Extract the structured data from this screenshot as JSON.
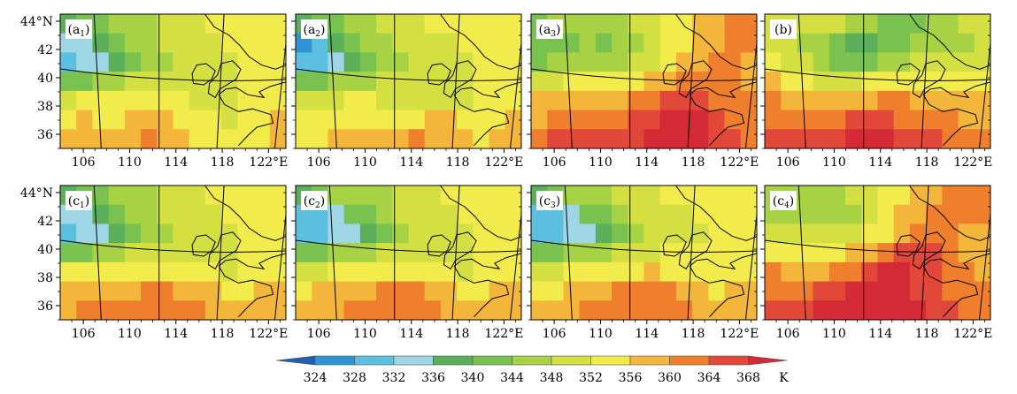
{
  "panels": [
    {
      "id": "a1",
      "letter": "a",
      "sub": "1",
      "row": 0,
      "col": 0,
      "field": [
        [
          338,
          340,
          342,
          344,
          344,
          346,
          348,
          350,
          350,
          352,
          352,
          354,
          352,
          352
        ],
        [
          332,
          334,
          338,
          342,
          344,
          346,
          348,
          350,
          350,
          350,
          352,
          352,
          352,
          354
        ],
        [
          330,
          332,
          334,
          338,
          342,
          344,
          346,
          348,
          348,
          350,
          350,
          352,
          352,
          354
        ],
        [
          340,
          342,
          344,
          346,
          348,
          348,
          350,
          350,
          350,
          350,
          350,
          352,
          352,
          354
        ],
        [
          350,
          352,
          352,
          354,
          354,
          352,
          352,
          352,
          350,
          350,
          350,
          352,
          352,
          354
        ],
        [
          354,
          356,
          354,
          354,
          356,
          356,
          356,
          354,
          352,
          352,
          350,
          352,
          354,
          356
        ],
        [
          356,
          356,
          356,
          358,
          358,
          360,
          358,
          356,
          354,
          352,
          352,
          354,
          354,
          356
        ]
      ]
    },
    {
      "id": "a2",
      "letter": "a",
      "sub": "2",
      "row": 0,
      "col": 1,
      "field": [
        [
          336,
          340,
          342,
          344,
          346,
          348,
          350,
          350,
          352,
          352,
          354,
          354,
          354,
          354
        ],
        [
          326,
          330,
          336,
          342,
          344,
          346,
          348,
          350,
          350,
          350,
          352,
          352,
          354,
          354
        ],
        [
          328,
          330,
          332,
          336,
          340,
          344,
          346,
          348,
          348,
          350,
          350,
          352,
          352,
          354
        ],
        [
          340,
          342,
          344,
          346,
          346,
          348,
          348,
          350,
          350,
          350,
          350,
          352,
          352,
          354
        ],
        [
          348,
          350,
          350,
          352,
          352,
          350,
          350,
          350,
          350,
          350,
          350,
          352,
          352,
          354
        ],
        [
          352,
          354,
          354,
          354,
          354,
          354,
          354,
          354,
          356,
          356,
          354,
          354,
          354,
          356
        ],
        [
          354,
          354,
          356,
          356,
          356,
          358,
          358,
          360,
          358,
          358,
          356,
          354,
          356,
          356
        ]
      ]
    },
    {
      "id": "a3",
      "letter": "a",
      "sub": "3",
      "row": 0,
      "col": 2,
      "field": [
        [
          342,
          344,
          344,
          346,
          344,
          346,
          348,
          350,
          352,
          354,
          356,
          358,
          360,
          360
        ],
        [
          340,
          342,
          342,
          344,
          342,
          344,
          346,
          350,
          352,
          354,
          356,
          358,
          360,
          360
        ],
        [
          342,
          344,
          344,
          344,
          344,
          346,
          348,
          350,
          354,
          356,
          358,
          360,
          360,
          358
        ],
        [
          350,
          350,
          352,
          352,
          352,
          352,
          354,
          356,
          358,
          360,
          362,
          362,
          360,
          358
        ],
        [
          356,
          356,
          358,
          358,
          358,
          358,
          360,
          362,
          364,
          366,
          364,
          362,
          360,
          360
        ],
        [
          358,
          360,
          362,
          362,
          362,
          362,
          364,
          366,
          368,
          370,
          368,
          364,
          362,
          360
        ],
        [
          362,
          364,
          364,
          366,
          364,
          366,
          366,
          368,
          370,
          370,
          370,
          366,
          364,
          362
        ]
      ]
    },
    {
      "id": "b",
      "letter": "b",
      "sub": "",
      "row": 0,
      "col": 3,
      "field": [
        [
          350,
          350,
          350,
          350,
          348,
          346,
          344,
          342,
          340,
          342,
          344,
          346,
          348,
          348
        ],
        [
          350,
          348,
          346,
          344,
          340,
          338,
          338,
          340,
          342,
          344,
          346,
          346,
          346,
          348
        ],
        [
          352,
          350,
          348,
          346,
          342,
          340,
          342,
          344,
          346,
          348,
          348,
          348,
          348,
          350
        ],
        [
          356,
          354,
          352,
          350,
          350,
          350,
          352,
          352,
          354,
          354,
          354,
          352,
          352,
          352
        ],
        [
          360,
          358,
          356,
          356,
          356,
          358,
          358,
          360,
          360,
          358,
          358,
          356,
          356,
          356
        ],
        [
          362,
          360,
          360,
          362,
          362,
          364,
          364,
          364,
          362,
          362,
          360,
          360,
          358,
          358
        ],
        [
          364,
          364,
          364,
          366,
          366,
          368,
          368,
          368,
          366,
          364,
          364,
          362,
          360,
          360
        ]
      ]
    },
    {
      "id": "c1",
      "letter": "c",
      "sub": "1",
      "row": 1,
      "col": 0,
      "field": [
        [
          338,
          340,
          342,
          344,
          344,
          346,
          348,
          350,
          350,
          352,
          352,
          354,
          352,
          352
        ],
        [
          332,
          334,
          338,
          342,
          344,
          346,
          348,
          350,
          350,
          350,
          352,
          352,
          352,
          354
        ],
        [
          330,
          332,
          334,
          338,
          342,
          344,
          346,
          348,
          348,
          350,
          350,
          352,
          352,
          354
        ],
        [
          340,
          342,
          344,
          346,
          348,
          348,
          350,
          350,
          350,
          350,
          350,
          352,
          352,
          354
        ],
        [
          352,
          352,
          354,
          354,
          354,
          354,
          354,
          354,
          352,
          352,
          350,
          352,
          354,
          354
        ],
        [
          356,
          356,
          356,
          358,
          358,
          360,
          360,
          358,
          356,
          356,
          354,
          354,
          356,
          356
        ],
        [
          358,
          360,
          360,
          360,
          362,
          362,
          362,
          360,
          360,
          358,
          356,
          356,
          356,
          356
        ]
      ]
    },
    {
      "id": "c2",
      "letter": "c",
      "sub": "2",
      "row": 1,
      "col": 1,
      "field": [
        [
          338,
          342,
          344,
          344,
          344,
          346,
          348,
          350,
          350,
          352,
          352,
          354,
          354,
          354
        ],
        [
          328,
          330,
          334,
          340,
          342,
          346,
          348,
          350,
          350,
          350,
          352,
          352,
          354,
          354
        ],
        [
          328,
          330,
          332,
          334,
          338,
          342,
          346,
          348,
          348,
          350,
          350,
          352,
          352,
          354
        ],
        [
          340,
          342,
          344,
          344,
          346,
          348,
          348,
          350,
          350,
          350,
          350,
          352,
          352,
          354
        ],
        [
          350,
          350,
          352,
          352,
          352,
          354,
          354,
          354,
          352,
          352,
          350,
          352,
          352,
          354
        ],
        [
          354,
          356,
          356,
          356,
          358,
          360,
          360,
          360,
          358,
          356,
          354,
          354,
          356,
          356
        ],
        [
          356,
          358,
          358,
          360,
          360,
          362,
          362,
          362,
          360,
          358,
          356,
          356,
          356,
          356
        ]
      ]
    },
    {
      "id": "c3",
      "letter": "c",
      "sub": "3",
      "row": 1,
      "col": 2,
      "field": [
        [
          338,
          342,
          344,
          346,
          346,
          348,
          348,
          350,
          352,
          352,
          354,
          354,
          354,
          354
        ],
        [
          328,
          330,
          334,
          340,
          342,
          346,
          348,
          350,
          350,
          350,
          352,
          352,
          354,
          354
        ],
        [
          328,
          330,
          332,
          334,
          338,
          342,
          346,
          348,
          348,
          350,
          350,
          352,
          352,
          354
        ],
        [
          340,
          342,
          344,
          344,
          346,
          348,
          348,
          350,
          352,
          352,
          352,
          352,
          352,
          354
        ],
        [
          350,
          350,
          352,
          352,
          354,
          354,
          354,
          356,
          354,
          354,
          352,
          352,
          354,
          354
        ],
        [
          354,
          354,
          356,
          356,
          358,
          360,
          360,
          360,
          360,
          358,
          356,
          354,
          356,
          356
        ],
        [
          356,
          358,
          358,
          360,
          362,
          362,
          362,
          362,
          362,
          360,
          356,
          356,
          356,
          356
        ]
      ]
    },
    {
      "id": "c4",
      "letter": "c",
      "sub": "4",
      "row": 1,
      "col": 3,
      "field": [
        [
          344,
          344,
          344,
          346,
          346,
          348,
          348,
          352,
          354,
          356,
          358,
          360,
          362,
          362
        ],
        [
          344,
          346,
          346,
          344,
          344,
          346,
          348,
          352,
          356,
          358,
          360,
          360,
          362,
          362
        ],
        [
          348,
          348,
          348,
          348,
          348,
          350,
          352,
          354,
          358,
          362,
          362,
          360,
          358,
          356
        ],
        [
          354,
          354,
          354,
          354,
          354,
          356,
          358,
          362,
          366,
          366,
          364,
          360,
          358,
          356
        ],
        [
          360,
          358,
          358,
          358,
          360,
          362,
          364,
          368,
          368,
          366,
          364,
          362,
          360,
          358
        ],
        [
          362,
          362,
          362,
          364,
          366,
          368,
          370,
          370,
          368,
          366,
          364,
          362,
          360,
          360
        ],
        [
          364,
          364,
          366,
          368,
          368,
          370,
          370,
          370,
          370,
          368,
          366,
          364,
          362,
          360
        ]
      ]
    }
  ],
  "lon_ticks": [
    {
      "value": 106,
      "label": "106"
    },
    {
      "value": 110,
      "label": "110"
    },
    {
      "value": 114,
      "label": "114"
    },
    {
      "value": 118,
      "label": "118"
    },
    {
      "value": 122,
      "label": "122°E"
    }
  ],
  "lat_ticks": [
    {
      "value": 44,
      "label": "44°N"
    },
    {
      "value": 42,
      "label": "42"
    },
    {
      "value": 40,
      "label": "40"
    },
    {
      "value": 38,
      "label": "38"
    },
    {
      "value": 36,
      "label": "36"
    }
  ],
  "colorbar": {
    "levels": [
      324,
      328,
      332,
      336,
      340,
      344,
      348,
      352,
      356,
      360,
      364,
      368
    ],
    "labels": [
      "324",
      "328",
      "332",
      "336",
      "340",
      "344",
      "348",
      "352",
      "356",
      "360",
      "364",
      "368"
    ],
    "colors": [
      "#1f5fb0",
      "#2f94d6",
      "#5bbfe0",
      "#9fd6e6",
      "#5aaf58",
      "#79c250",
      "#a7d243",
      "#d4e042",
      "#f1ec4b",
      "#f4b63a",
      "#ef7f2c",
      "#e2483a",
      "#d42a36"
    ],
    "unit": "K"
  }
}
